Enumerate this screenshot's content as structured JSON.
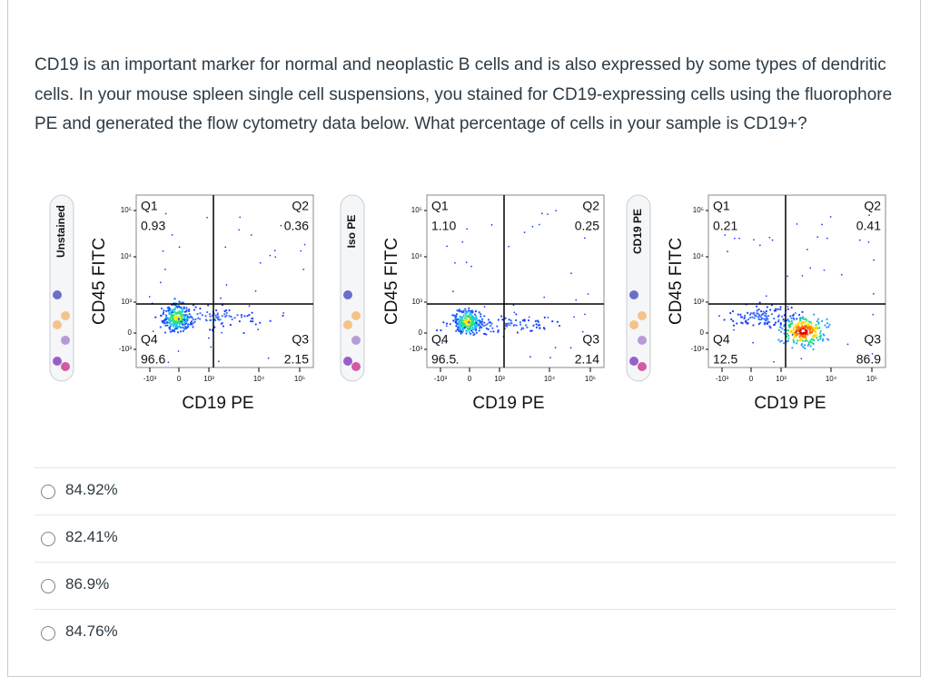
{
  "question": "CD19 is an important marker for normal and neoplastic B cells and is also expressed by some types of dendritic cells. In your mouse spleen single cell suspensions, you stained for CD19-expressing cells using the fluorophore PE and generated the flow cytometry data below. What percentage of cells in your sample is CD19+?",
  "panels": [
    {
      "tube_label": "Unstained",
      "y_axis_label": "CD45 FITC",
      "x_axis_label": "CD19 PE",
      "y_ticks": [
        "10⁵",
        "10⁴",
        "10³",
        "0",
        "-10³"
      ],
      "x_ticks": [
        "-10³",
        "0",
        "10³",
        "10⁴",
        "10⁵"
      ],
      "quadrants": [
        {
          "name": "Q1",
          "value": "0.93"
        },
        {
          "name": "Q2",
          "value": "0.36"
        },
        {
          "name": "Q3",
          "value": "2.15"
        },
        {
          "name": "Q4",
          "value": "96.6"
        }
      ]
    },
    {
      "tube_label": "Iso PE",
      "y_axis_label": "CD45 FITC",
      "x_axis_label": "CD19 PE",
      "y_ticks": [
        "10⁵",
        "10⁴",
        "10³",
        "0",
        "-10³"
      ],
      "x_ticks": [
        "-10³",
        "0",
        "10³",
        "10⁴",
        "10⁵"
      ],
      "quadrants": [
        {
          "name": "Q1",
          "value": "1.10"
        },
        {
          "name": "Q2",
          "value": "0.25"
        },
        {
          "name": "Q3",
          "value": "2.14"
        },
        {
          "name": "Q4",
          "value": "96.5"
        }
      ]
    },
    {
      "tube_label": "CD19 PE",
      "y_axis_label": "CD45 FITC",
      "x_axis_label": "CD19 PE",
      "y_ticks": [
        "10⁵",
        "10⁴",
        "10³",
        "0",
        "-10³"
      ],
      "x_ticks": [
        "-10³",
        "0",
        "10³",
        "10⁴",
        "10⁵"
      ],
      "quadrants": [
        {
          "name": "Q1",
          "value": "0.21"
        },
        {
          "name": "Q2",
          "value": "0.41"
        },
        {
          "name": "Q3",
          "value": "86.9"
        },
        {
          "name": "Q4",
          "value": "12.5"
        }
      ]
    }
  ],
  "options": [
    "84.92%",
    "82.41%",
    "86.9%",
    "84.76%"
  ]
}
